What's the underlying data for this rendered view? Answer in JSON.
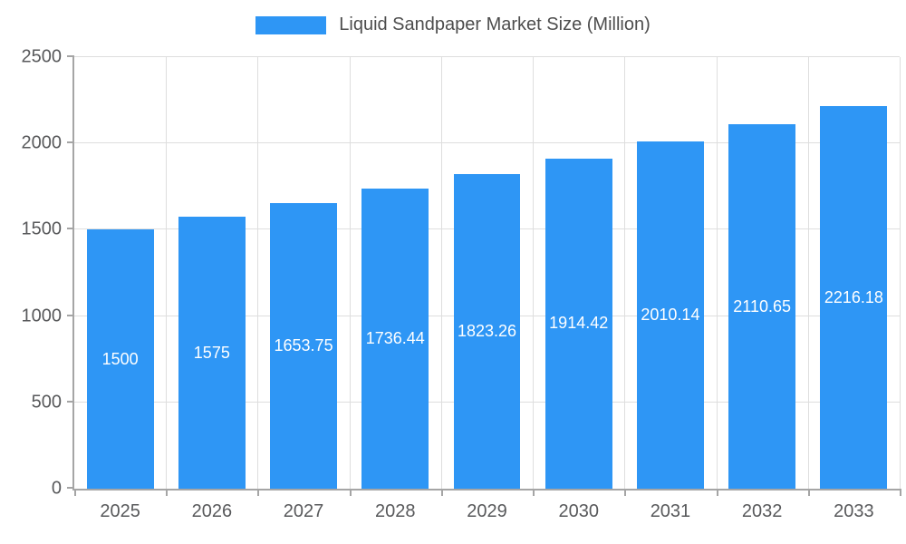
{
  "legend": {
    "label": "Liquid Sandpaper Market Size (Million)"
  },
  "chart_data": {
    "type": "bar",
    "title": "Liquid Sandpaper Market Size (Million)",
    "categories": [
      "2025",
      "2026",
      "2027",
      "2028",
      "2029",
      "2030",
      "2031",
      "2032",
      "2033"
    ],
    "values": [
      1500,
      1575,
      1653.75,
      1736.44,
      1823.26,
      1914.42,
      2010.14,
      2110.65,
      2216.18
    ],
    "value_labels": [
      "1500",
      "1575",
      "1653.75",
      "1736.44",
      "1823.26",
      "1914.42",
      "2010.14",
      "2110.65",
      "2216.18"
    ],
    "xlabel": "",
    "ylabel": "",
    "ylim": [
      0,
      2500
    ],
    "yticks": [
      0,
      500,
      1000,
      1500,
      2000,
      2500
    ],
    "grid": true,
    "legend_position": "top",
    "colors": {
      "bar": "#2E96F5",
      "grid": "#DEDEDE",
      "axis": "#A5A5A5",
      "tick_text": "#58595B",
      "value_text": "#FFFFFF"
    }
  }
}
